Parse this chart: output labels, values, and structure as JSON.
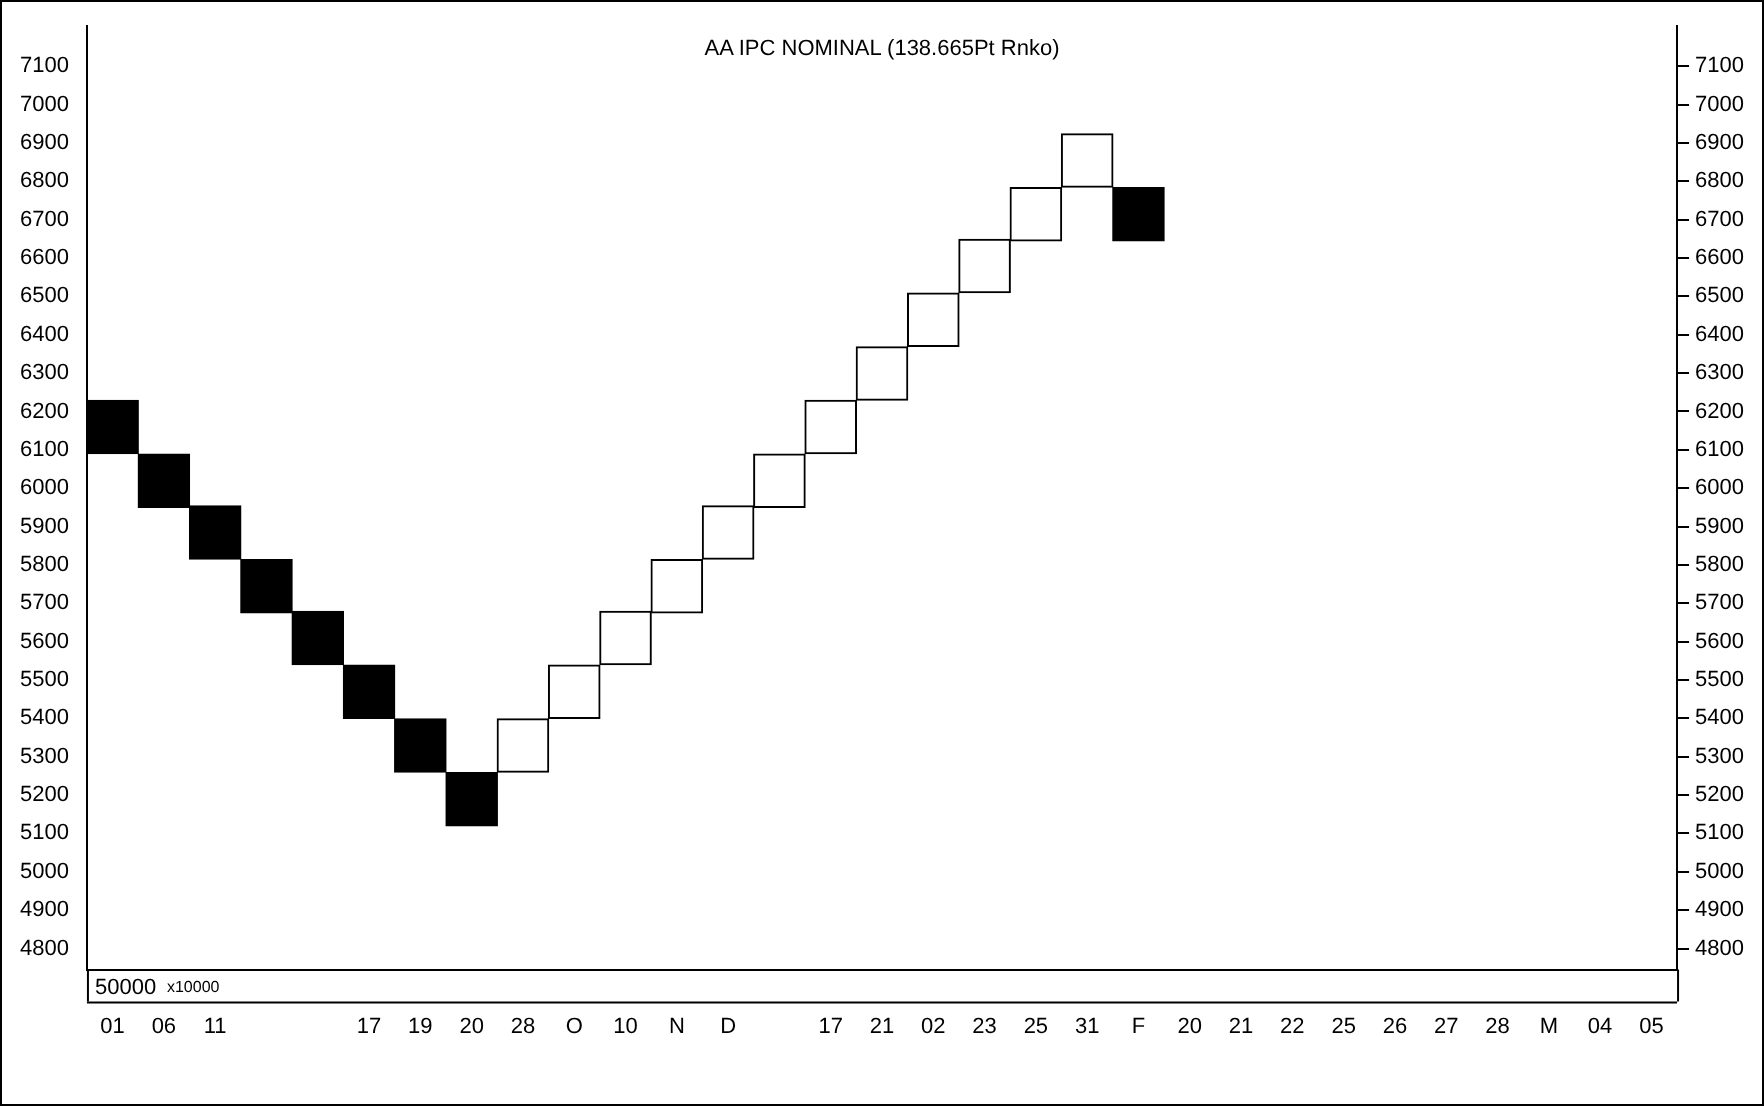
{
  "chart_data": {
    "type": "bar",
    "title": "AA IPC NOMINAL (138.665Pt Rnko)",
    "categories": [
      "01",
      "06",
      "11",
      null,
      null,
      "17",
      "19",
      "20",
      "28",
      "O",
      "10",
      "N",
      "D",
      null,
      "17",
      "21",
      "02",
      "23",
      "25",
      "31",
      "F",
      "20",
      "21",
      "22",
      "25",
      "26",
      "27",
      "28",
      "M",
      "04",
      "05"
    ],
    "base": [
      6090,
      5950,
      5815,
      5675,
      5540,
      5400,
      5260,
      5120,
      5260,
      5400,
      5540,
      5675,
      5815,
      5950,
      6090,
      6230,
      6370,
      6510,
      6645,
      6785,
      6645,
      null,
      null,
      null,
      null,
      null,
      null,
      null,
      null,
      null,
      null
    ],
    "values": [
      138.665,
      138.665,
      138.665,
      138.665,
      138.665,
      138.665,
      138.665,
      138.665,
      138.665,
      138.665,
      138.665,
      138.665,
      138.665,
      138.665,
      138.665,
      138.665,
      138.665,
      138.665,
      138.665,
      138.665,
      138.665,
      null,
      null,
      null,
      null,
      null,
      null,
      null,
      null,
      null,
      null
    ],
    "colors": [
      "#000000",
      "#000000",
      "#000000",
      "#000000",
      "#000000",
      "#000000",
      "#000000",
      "#000000",
      "#ffffff",
      "#ffffff",
      "#ffffff",
      "#ffffff",
      "#ffffff",
      "#ffffff",
      "#ffffff",
      "#ffffff",
      "#ffffff",
      "#ffffff",
      "#ffffff",
      "#ffffff",
      "#000000",
      null,
      null,
      null,
      null,
      null,
      null,
      null,
      null,
      null,
      null
    ],
    "ylim": [
      4745,
      7205
    ],
    "yticks": [
      4800,
      4900,
      5000,
      5100,
      5200,
      5300,
      5400,
      5500,
      5600,
      5700,
      5800,
      5900,
      6000,
      6100,
      6200,
      6300,
      6400,
      6500,
      6600,
      6700,
      6800,
      6900,
      7000,
      7100
    ],
    "y2lim": [
      4745,
      7205
    ],
    "y2ticks": [
      4800,
      4900,
      5000,
      5100,
      5200,
      5300,
      5400,
      5500,
      5600,
      5700,
      5800,
      5900,
      6000,
      6100,
      6200,
      6300,
      6400,
      6500,
      6600,
      6700,
      6800,
      6900,
      7000,
      7100
    ],
    "annotations": [
      "50000",
      "x10000"
    ],
    "grid": false,
    "legend": false
  }
}
